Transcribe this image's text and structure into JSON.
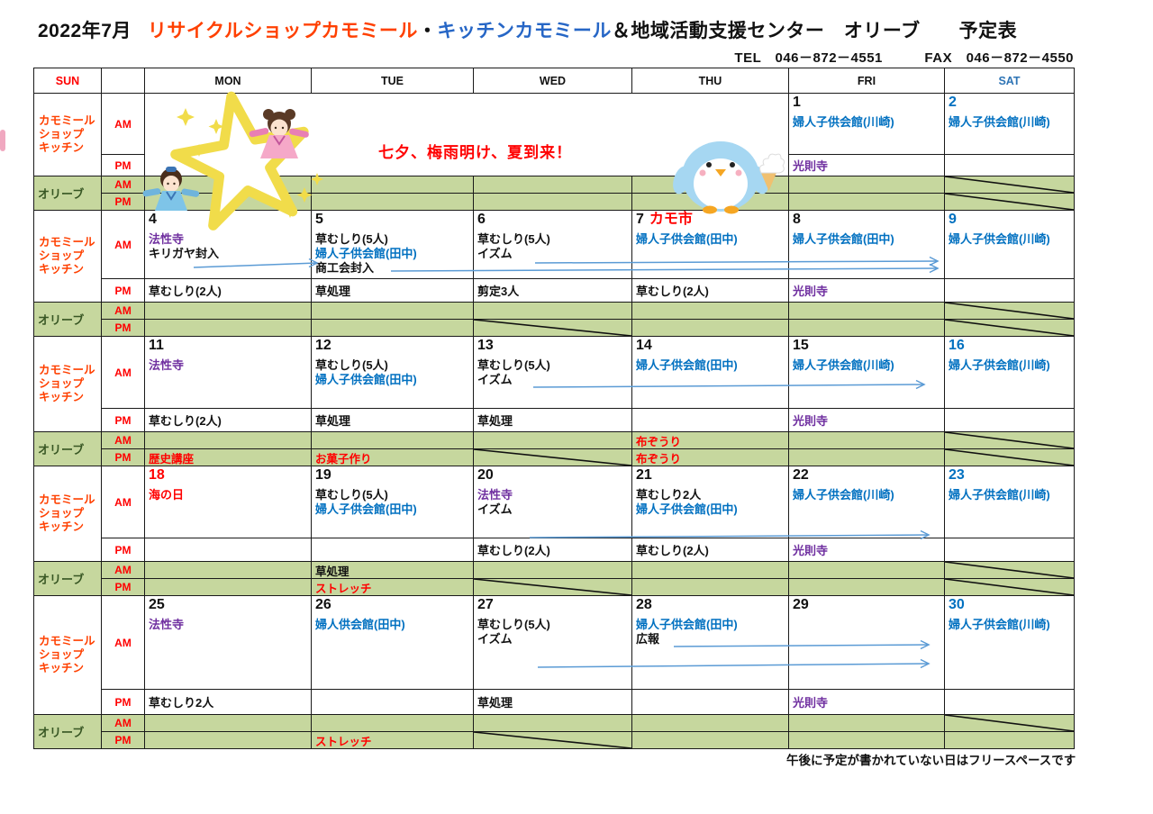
{
  "title": {
    "month": "2022年7月",
    "shop": "リサイクルショップカモミール",
    "sep": "・",
    "kitchen": "キッチンカモミール",
    "rest": "＆地域活動支援センター　オリーブ　　予定表"
  },
  "contact": {
    "tel_fax": "TEL　046－872－4551　　　FAX　046－872－4550"
  },
  "banner": {
    "slogan": "七夕、梅雨明け、夏到来！"
  },
  "footer": {
    "note": "午後に予定が書かれていない日はフリースペースです"
  },
  "header": {
    "labels": [
      "SUN",
      "",
      "MON",
      "TUE",
      "WED",
      "THU",
      "FRI",
      "SAT"
    ],
    "colors": [
      "#FF0000",
      "#111111",
      "#111111",
      "#111111",
      "#111111",
      "#111111",
      "#111111",
      "#2E74B5"
    ]
  },
  "groups": {
    "kamomile_lines": [
      "カモミール",
      "ショップ",
      "キッチン"
    ],
    "olive": "オリーブ",
    "am": "AM",
    "pm": "PM"
  },
  "colors": {
    "k": "#111111",
    "b": "#0070C0",
    "p": "#7030A0",
    "r": "#FF0000",
    "green_bg": "#C6D79E",
    "olive_text": "#375623",
    "arrow": "#5B9BD5",
    "orange_red": "#FF4000",
    "sat_blue": "#2E74B5"
  },
  "weeks": [
    {
      "banner": true,
      "days": {
        "mon": null,
        "tue": null,
        "wed": null,
        "thu": null,
        "fri": {
          "num": "1",
          "nc": "k",
          "am": [
            [
              "b",
              "婦人子供会館(川崎)"
            ]
          ],
          "pm": [
            [
              "p",
              "光則寺"
            ]
          ],
          "oam": null,
          "opm": null
        },
        "sat": {
          "num": "2",
          "nc": "b",
          "am": [
            [
              "b",
              "婦人子供会館(川崎)"
            ]
          ],
          "pm": [],
          "oam": "diag",
          "opm": "diag"
        }
      }
    },
    {
      "banner": false,
      "days": {
        "mon": {
          "num": "4",
          "nc": "k",
          "am": [
            [
              "p",
              "法性寺"
            ],
            [
              "k",
              "キリガヤ封入"
            ]
          ],
          "pm": [
            [
              "k",
              "草むしり(2人)"
            ]
          ],
          "oam": null,
          "opm": null
        },
        "tue": {
          "num": "5",
          "nc": "k",
          "am": [
            [
              "k",
              "草むしり(5人)"
            ],
            [
              "b",
              "婦人子供会館(田中)"
            ],
            [
              "k",
              "商工会封入"
            ]
          ],
          "pm": [
            [
              "k",
              "草処理"
            ]
          ],
          "oam": null,
          "opm": null
        },
        "wed": {
          "num": "6",
          "nc": "k",
          "am": [
            [
              "k",
              "草むしり(5人)"
            ],
            [
              "k",
              "イズム"
            ]
          ],
          "pm": [
            [
              "k",
              "剪定3人"
            ]
          ],
          "oam": null,
          "opm": "diag"
        },
        "thu": {
          "num": "7",
          "nc": "k",
          "extra": "カモ市",
          "am": [
            [
              "b",
              "婦人子供会館(田中)"
            ]
          ],
          "pm": [
            [
              "k",
              "草むしり(2人)"
            ]
          ],
          "oam": null,
          "opm": null
        },
        "fri": {
          "num": "8",
          "nc": "k",
          "am": [
            [
              "b",
              "婦人子供会館(田中)"
            ]
          ],
          "pm": [
            [
              "p",
              "光則寺"
            ]
          ],
          "oam": null,
          "opm": null
        },
        "sat": {
          "num": "9",
          "nc": "b",
          "am": [
            [
              "b",
              "婦人子供会館(川崎)"
            ]
          ],
          "pm": [],
          "oam": "diag",
          "opm": "diag"
        }
      }
    },
    {
      "banner": false,
      "days": {
        "mon": {
          "num": "11",
          "nc": "k",
          "am": [
            [
              "p",
              "法性寺"
            ]
          ],
          "pm": [
            [
              "k",
              "草むしり(2人)"
            ]
          ],
          "oam": null,
          "opm": [
            "r",
            "歴史講座"
          ]
        },
        "tue": {
          "num": "12",
          "nc": "k",
          "am": [
            [
              "k",
              "草むしり(5人)"
            ],
            [
              "b",
              "婦人子供会館(田中)"
            ]
          ],
          "pm": [
            [
              "k",
              "草処理"
            ]
          ],
          "oam": null,
          "opm": [
            "r",
            "お菓子作り"
          ]
        },
        "wed": {
          "num": "13",
          "nc": "k",
          "am": [
            [
              "k",
              "草むしり(5人)"
            ],
            [
              "k",
              "イズム"
            ]
          ],
          "pm": [
            [
              "k",
              "草処理"
            ]
          ],
          "oam": null,
          "opm": "diag"
        },
        "thu": {
          "num": "14",
          "nc": "k",
          "am": [
            [
              "b",
              "婦人子供会館(田中)"
            ]
          ],
          "pm": [],
          "oam": [
            "r",
            "布ぞうり"
          ],
          "opm": [
            "r",
            "布ぞうり"
          ]
        },
        "fri": {
          "num": "15",
          "nc": "k",
          "am": [
            [
              "b",
              "婦人子供会館(川崎)"
            ]
          ],
          "pm": [
            [
              "p",
              "光則寺"
            ]
          ],
          "oam": null,
          "opm": null
        },
        "sat": {
          "num": "16",
          "nc": "b",
          "am": [
            [
              "b",
              "婦人子供会館(川崎)"
            ]
          ],
          "pm": [],
          "oam": "diag",
          "opm": "diag"
        }
      }
    },
    {
      "banner": false,
      "days": {
        "mon": {
          "num": "18",
          "nc": "r",
          "am": [
            [
              "r",
              "海の日"
            ]
          ],
          "pm": [],
          "oam": null,
          "opm": null
        },
        "tue": {
          "num": "19",
          "nc": "k",
          "am": [
            [
              "k",
              "草むしり(5人)"
            ],
            [
              "b",
              "婦人子供会館(田中)"
            ]
          ],
          "pm": [],
          "oam": [
            "k",
            "草処理"
          ],
          "opm": [
            "r",
            "ストレッチ"
          ]
        },
        "wed": {
          "num": "20",
          "nc": "k",
          "am": [
            [
              "p",
              "法性寺"
            ],
            [
              "k",
              "イズム"
            ]
          ],
          "pm": [
            [
              "k",
              "草むしり(2人)"
            ]
          ],
          "oam": null,
          "opm": "diag"
        },
        "thu": {
          "num": "21",
          "nc": "k",
          "am": [
            [
              "k",
              "草むしり2人"
            ],
            [
              "b",
              "婦人子供会館(田中)"
            ]
          ],
          "pm": [
            [
              "k",
              "草むしり(2人)"
            ]
          ],
          "oam": null,
          "opm": null
        },
        "fri": {
          "num": "22",
          "nc": "k",
          "am": [
            [
              "b",
              "婦人子供会館(川崎)"
            ]
          ],
          "pm": [
            [
              "p",
              "光則寺"
            ]
          ],
          "oam": null,
          "opm": null
        },
        "sat": {
          "num": "23",
          "nc": "b",
          "am": [
            [
              "b",
              "婦人子供会館(川崎)"
            ]
          ],
          "pm": [],
          "oam": "diag",
          "opm": "diag"
        }
      }
    },
    {
      "banner": false,
      "days": {
        "mon": {
          "num": "25",
          "nc": "k",
          "am": [
            [
              "p",
              "法性寺"
            ]
          ],
          "pm": [
            [
              "k",
              "草むしり2人"
            ]
          ],
          "oam": null,
          "opm": null
        },
        "tue": {
          "num": "26",
          "nc": "k",
          "am": [
            [
              "b",
              "婦人供会館(田中)"
            ]
          ],
          "pm": [],
          "oam": null,
          "opm": [
            "r",
            "ストレッチ"
          ]
        },
        "wed": {
          "num": "27",
          "nc": "k",
          "am": [
            [
              "k",
              "草むしり(5人)"
            ],
            [
              "k",
              "イズム"
            ]
          ],
          "pm": [
            [
              "k",
              "草処理"
            ]
          ],
          "oam": null,
          "opm": "diag"
        },
        "thu": {
          "num": "28",
          "nc": "k",
          "am": [
            [
              "b",
              "婦人子供会館(田中)"
            ],
            [
              "k",
              "広報"
            ]
          ],
          "pm": [],
          "oam": null,
          "opm": null
        },
        "fri": {
          "num": "29",
          "nc": "k",
          "am": [],
          "pm": [
            [
              "p",
              "光則寺"
            ]
          ],
          "oam": null,
          "opm": null
        },
        "sat": {
          "num": "30",
          "nc": "b",
          "am": [
            [
              "b",
              "婦人子供会館(川崎)"
            ]
          ],
          "pm": [],
          "oam": "diag",
          "opm": null
        }
      }
    }
  ]
}
